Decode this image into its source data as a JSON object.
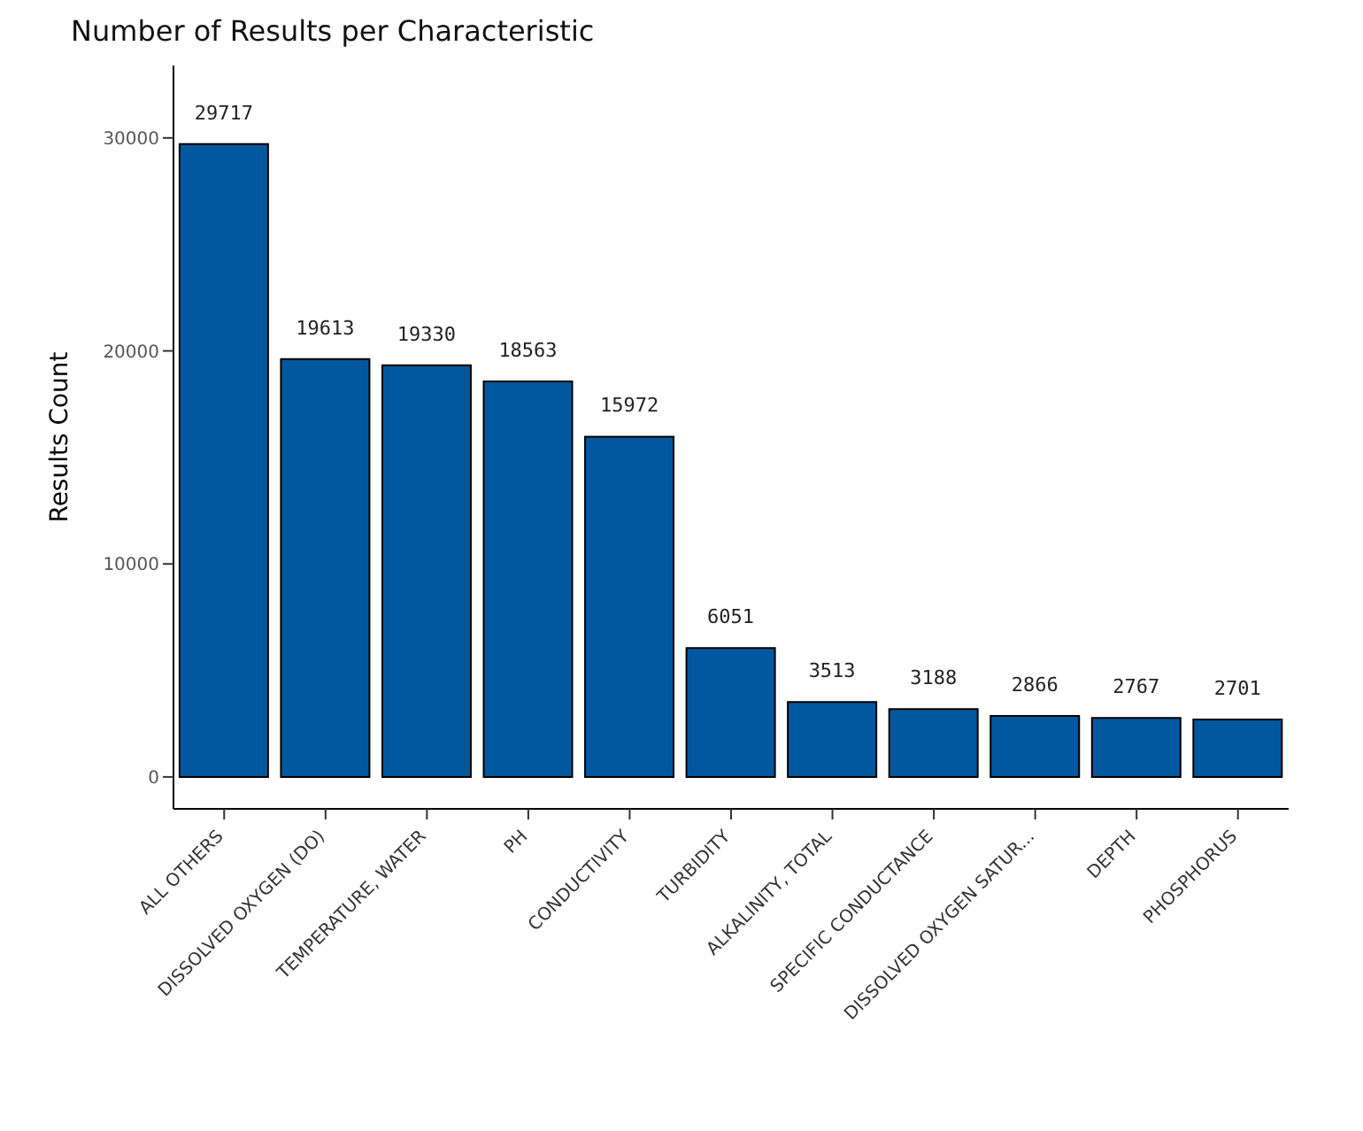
{
  "chart_data": {
    "type": "bar",
    "title": "Number of Results per Characteristic",
    "ylabel": "Results Count",
    "categories": [
      "ALL OTHERS",
      "DISSOLVED OXYGEN (DO)",
      "TEMPERATURE, WATER",
      "PH",
      "CONDUCTIVITY",
      "TURBIDITY",
      "ALKALINITY, TOTAL",
      "SPECIFIC CONDUCTANCE",
      "DISSOLVED OXYGEN SATUR...",
      "DEPTH",
      "PHOSPHORUS"
    ],
    "values": [
      29717,
      19613,
      19330,
      18563,
      15972,
      6051,
      3513,
      3188,
      2866,
      2767,
      2701
    ],
    "color": "#02589e",
    "ylim": [
      -1500,
      33400
    ],
    "yticks": [
      0,
      10000,
      20000,
      30000
    ],
    "grid": false,
    "data_labels": true
  }
}
